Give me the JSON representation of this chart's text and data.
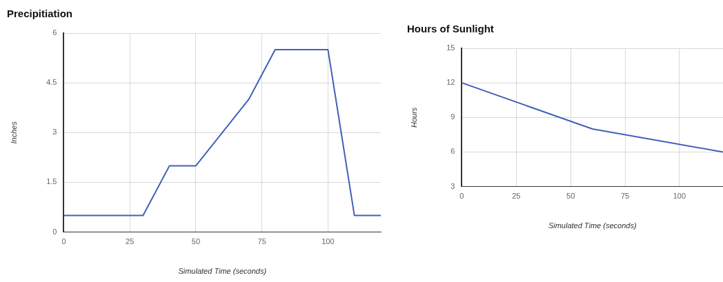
{
  "chart_data": [
    {
      "type": "line",
      "title": "Precipitiation",
      "xlabel": "Simulated Time (seconds)",
      "ylabel": "Inches",
      "x": [
        0,
        30,
        40,
        50,
        70,
        80,
        100,
        110,
        120
      ],
      "series": [
        {
          "color": "#4060b8",
          "values": [
            0.5,
            0.5,
            2,
            2,
            4,
            5.5,
            5.5,
            0.5,
            0.5
          ]
        }
      ],
      "xlim": [
        0,
        120
      ],
      "xticks": [
        0,
        25,
        50,
        75,
        100
      ],
      "ylim": [
        0,
        6
      ],
      "yticks": [
        0,
        1.5,
        3,
        4.5,
        6
      ],
      "grid": true,
      "legend": false,
      "marker": "none",
      "line_style": "solid"
    },
    {
      "type": "line",
      "title": "Hours of Sunlight",
      "xlabel": "Simulated Time (seconds)",
      "ylabel": "Hours",
      "x": [
        0,
        60,
        120
      ],
      "series": [
        {
          "color": "#4060b8",
          "values": [
            12,
            8,
            6
          ]
        }
      ],
      "xlim": [
        0,
        120
      ],
      "xticks": [
        0,
        25,
        50,
        75,
        100
      ],
      "ylim": [
        3,
        15
      ],
      "yticks": [
        3,
        6,
        9,
        12,
        15
      ],
      "grid": true,
      "legend": false,
      "marker": "none",
      "line_style": "solid"
    }
  ]
}
